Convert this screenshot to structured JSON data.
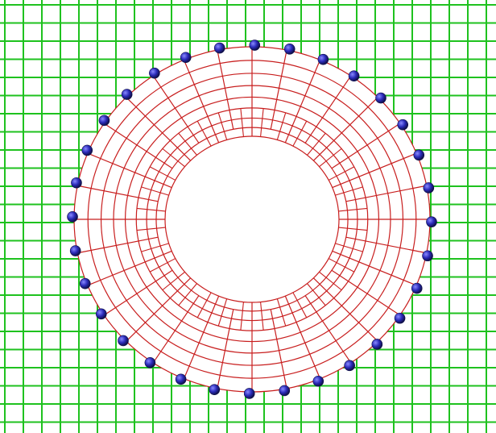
{
  "colors": {
    "background": "#ffffff",
    "background_grid": "#1fc21f",
    "mesh_lines": "#c81e1e",
    "node_fill": "#2a2ab8",
    "node_highlight": "#8a8aff",
    "node_shadow": "#10104a"
  },
  "background_grid": {
    "columns": 27,
    "rows": 23
  },
  "annular_mesh": {
    "radial_divisions": 8,
    "circumferential_divisions": 32,
    "hole_shape": "ellipse",
    "outer_shape": "ellipse"
  },
  "control_points": {
    "count": 32,
    "shape": "sphere"
  }
}
